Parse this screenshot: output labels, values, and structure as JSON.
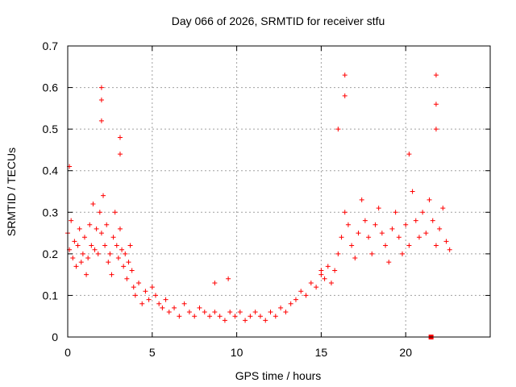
{
  "chart_data": {
    "type": "scatter",
    "title": "Day 066 of 2026, SRMTID for receiver stfu",
    "xlabel": "GPS time / hours",
    "ylabel": "SRMTID / TECUs",
    "xlim": [
      0,
      25
    ],
    "ylim": [
      0,
      0.7
    ],
    "xticks": [
      0,
      5,
      10,
      15,
      20
    ],
    "yticks": [
      0,
      0.1,
      0.2,
      0.3,
      0.4,
      0.5,
      0.6,
      0.7
    ],
    "xtick_labels": [
      "0",
      "5",
      "10",
      "15",
      "20"
    ],
    "ytick_labels": [
      "0",
      "0.1",
      "0.2",
      "0.3",
      "0.4",
      "0.5",
      "0.6",
      "0.7"
    ],
    "grid": true,
    "series": [
      {
        "name": "SRMTID",
        "marker": "plus",
        "color": "#ff0000",
        "x": [
          0.0,
          0.1,
          0.2,
          0.3,
          0.4,
          0.5,
          0.6,
          0.7,
          0.8,
          0.9,
          1.0,
          1.1,
          1.2,
          1.3,
          1.4,
          1.5,
          1.6,
          1.7,
          1.8,
          1.9,
          2.0,
          2.1,
          2.2,
          2.3,
          2.4,
          2.5,
          2.6,
          2.7,
          2.8,
          2.9,
          3.0,
          3.1,
          3.2,
          3.3,
          3.4,
          3.5,
          3.6,
          3.7,
          3.8,
          3.9,
          4.0,
          4.2,
          4.4,
          4.6,
          4.8,
          5.0,
          5.2,
          5.4,
          5.6,
          5.8,
          6.0,
          6.3,
          6.6,
          6.9,
          7.2,
          7.5,
          7.8,
          8.1,
          8.4,
          8.7,
          9.0,
          9.3,
          9.6,
          9.9,
          10.2,
          10.5,
          10.8,
          11.1,
          11.4,
          11.7,
          12.0,
          12.3,
          12.6,
          12.9,
          13.2,
          13.5,
          13.8,
          14.1,
          14.4,
          14.7,
          15.0,
          15.2,
          15.4,
          15.6,
          15.8,
          16.0,
          16.2,
          16.4,
          16.6,
          16.8,
          17.0,
          17.2,
          17.4,
          17.6,
          17.8,
          18.0,
          18.2,
          18.4,
          18.6,
          18.8,
          19.0,
          19.2,
          19.4,
          19.6,
          19.8,
          20.0,
          20.2,
          20.4,
          20.6,
          20.8,
          21.0,
          21.2,
          21.4,
          21.6,
          21.8,
          22.0,
          22.2,
          22.4,
          22.6,
          2.0,
          2.0,
          2.0,
          3.1,
          3.1,
          16.4,
          16.4,
          21.8,
          21.8,
          21.8,
          0.1,
          16.0,
          20.2,
          8.7,
          9.5,
          15.0
        ],
        "y": [
          0.25,
          0.21,
          0.28,
          0.19,
          0.23,
          0.17,
          0.22,
          0.26,
          0.18,
          0.2,
          0.24,
          0.15,
          0.19,
          0.27,
          0.22,
          0.32,
          0.21,
          0.26,
          0.2,
          0.3,
          0.25,
          0.34,
          0.22,
          0.27,
          0.18,
          0.2,
          0.15,
          0.24,
          0.3,
          0.22,
          0.19,
          0.26,
          0.21,
          0.17,
          0.2,
          0.14,
          0.18,
          0.22,
          0.16,
          0.12,
          0.1,
          0.13,
          0.08,
          0.11,
          0.09,
          0.12,
          0.1,
          0.08,
          0.07,
          0.09,
          0.06,
          0.07,
          0.05,
          0.08,
          0.06,
          0.05,
          0.07,
          0.06,
          0.05,
          0.06,
          0.05,
          0.04,
          0.06,
          0.05,
          0.06,
          0.04,
          0.05,
          0.06,
          0.05,
          0.04,
          0.06,
          0.05,
          0.07,
          0.06,
          0.08,
          0.09,
          0.11,
          0.1,
          0.13,
          0.12,
          0.15,
          0.14,
          0.17,
          0.13,
          0.16,
          0.2,
          0.24,
          0.3,
          0.27,
          0.22,
          0.19,
          0.25,
          0.33,
          0.28,
          0.24,
          0.2,
          0.27,
          0.31,
          0.25,
          0.22,
          0.18,
          0.26,
          0.3,
          0.24,
          0.2,
          0.27,
          0.22,
          0.35,
          0.28,
          0.24,
          0.3,
          0.25,
          0.33,
          0.28,
          0.22,
          0.26,
          0.31,
          0.23,
          0.21,
          0.6,
          0.57,
          0.52,
          0.48,
          0.44,
          0.63,
          0.58,
          0.63,
          0.56,
          0.5,
          0.41,
          0.5,
          0.44,
          0.13,
          0.14,
          0.16
        ]
      }
    ],
    "highlight_point": {
      "x": 21.5,
      "y": 0.0
    }
  }
}
